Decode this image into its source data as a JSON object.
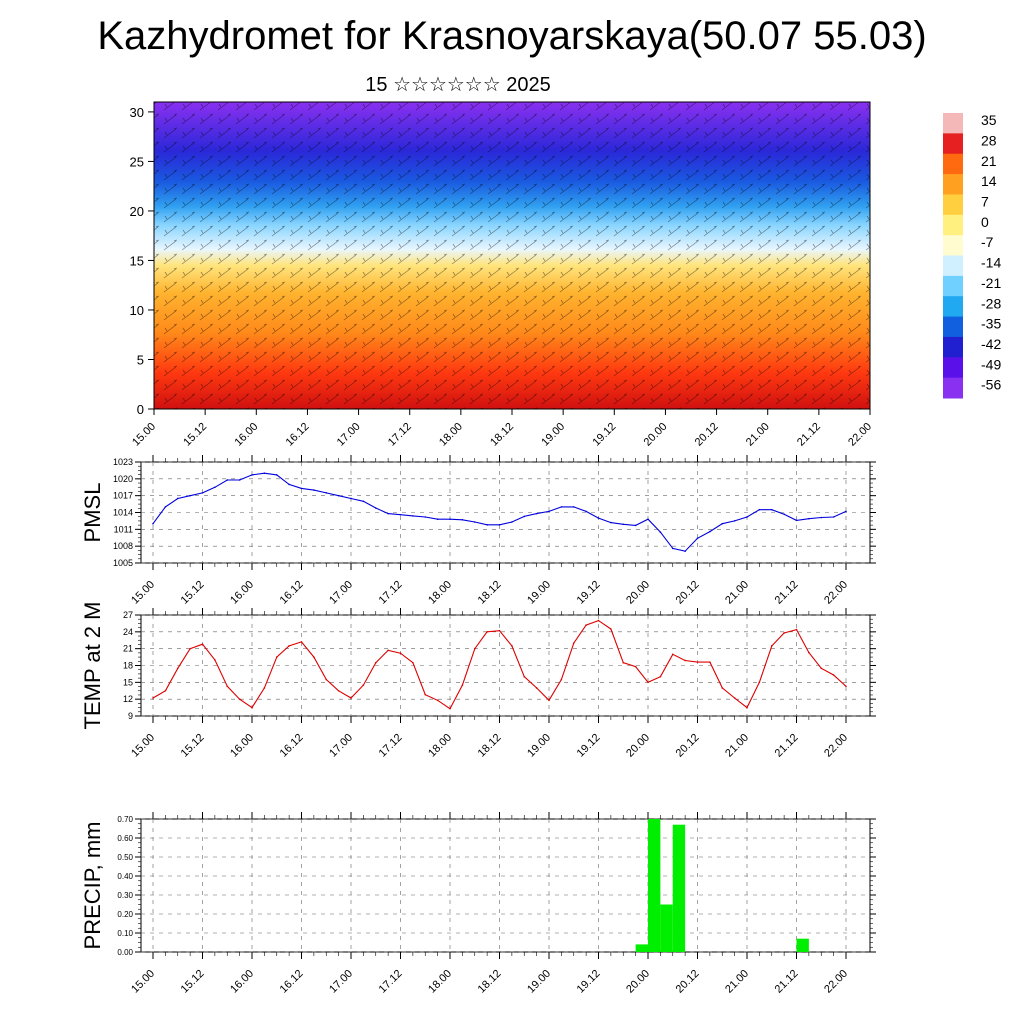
{
  "header": {
    "title": "Kazhydromet for Krasnoyarskaya(50.07 55.03)",
    "date": "15 ☆☆☆☆☆☆ 2025"
  },
  "colorbar": {
    "labels": [
      "35",
      "28",
      "21",
      "14",
      "7",
      "0",
      "-7",
      "-14",
      "-21",
      "-28",
      "-35",
      "-42",
      "-49",
      "-56"
    ],
    "colors": [
      "#f4b8b8",
      "#e62020",
      "#ff6a10",
      "#ffa020",
      "#ffcf40",
      "#fff080",
      "#fffcd0",
      "#d0f0ff",
      "#70d0ff",
      "#20a8f0",
      "#1060e0",
      "#2020d0",
      "#5a10e8",
      "#8a30f0"
    ]
  },
  "chart_data": [
    {
      "type": "heatmap",
      "name": "cross-section",
      "x_tick_labels": [
        "15.00",
        "15.12",
        "16.00",
        "16.12",
        "17.00",
        "17.12",
        "18.00",
        "18.12",
        "19.00",
        "19.12",
        "20.00",
        "20.12",
        "21.00",
        "21.12",
        "22.00"
      ],
      "y_tick_labels": [
        "0",
        "5",
        "10",
        "15",
        "20",
        "25",
        "30"
      ],
      "ylim": [
        0,
        31
      ],
      "value_range": [
        -56,
        35
      ]
    },
    {
      "type": "line",
      "ylabel": "PMSL",
      "y_tick_labels": [
        "1005",
        "1008",
        "1011",
        "1014",
        "1017",
        "1020",
        "1023"
      ],
      "ylim": [
        1005,
        1023
      ],
      "color": "#0000dd",
      "x_tick_labels": [
        "15.00",
        "15.12",
        "16.00",
        "16.12",
        "17.00",
        "17.12",
        "18.00",
        "18.12",
        "19.00",
        "19.12",
        "20.00",
        "20.12",
        "21.00",
        "21.12",
        "22.00"
      ],
      "x": [
        0,
        3,
        6,
        9,
        12,
        15,
        18,
        21,
        24,
        27,
        30,
        33,
        36,
        39,
        42,
        45,
        48,
        51,
        54,
        57,
        60,
        63,
        66,
        69,
        72,
        75,
        78,
        81,
        84,
        87,
        90,
        93,
        96,
        99,
        102,
        105,
        108,
        111,
        114,
        117,
        120,
        123,
        126,
        129,
        132,
        135,
        138,
        141,
        144,
        147,
        150,
        153,
        156,
        159,
        162,
        165,
        168
      ],
      "values": [
        1012,
        1015,
        1016.5,
        1017,
        1017.5,
        1018.5,
        1019.8,
        1019.8,
        1020.7,
        1021,
        1020.7,
        1019,
        1018.3,
        1018,
        1017.5,
        1017,
        1016.5,
        1016,
        1014.8,
        1013.8,
        1013.6,
        1013.4,
        1013.2,
        1012.8,
        1012.8,
        1012.7,
        1012.3,
        1011.8,
        1011.8,
        1012.3,
        1013.3,
        1013.8,
        1014.2,
        1015,
        1015,
        1014.2,
        1013,
        1012.2,
        1011.9,
        1011.7,
        1012.8,
        1010.5,
        1007.6,
        1007.1,
        1009.4,
        1010.6,
        1012,
        1012.5,
        1013.2,
        1014.5,
        1014.5,
        1013.7,
        1012.6,
        1012.9,
        1013.1,
        1013.2,
        1014.2
      ]
    },
    {
      "type": "line",
      "ylabel": "TEMP at 2 M",
      "y_tick_labels": [
        "9",
        "12",
        "15",
        "18",
        "21",
        "24",
        "27"
      ],
      "ylim": [
        9,
        27
      ],
      "color": "#dd0000",
      "x_tick_labels": [
        "15.00",
        "15.12",
        "16.00",
        "16.12",
        "17.00",
        "17.12",
        "18.00",
        "18.12",
        "19.00",
        "19.12",
        "20.00",
        "20.12",
        "21.00",
        "21.12",
        "22.00"
      ],
      "x": [
        0,
        3,
        6,
        9,
        12,
        15,
        18,
        21,
        24,
        27,
        30,
        33,
        36,
        39,
        42,
        45,
        48,
        51,
        54,
        57,
        60,
        63,
        66,
        69,
        72,
        75,
        78,
        81,
        84,
        87,
        90,
        93,
        96,
        99,
        102,
        105,
        108,
        111,
        114,
        117,
        120,
        123,
        126,
        129,
        132,
        135,
        138,
        141,
        144,
        147,
        150,
        153,
        156,
        159,
        162,
        165,
        168
      ],
      "values": [
        12.2,
        13.5,
        17.5,
        21,
        21.8,
        19,
        14.3,
        12,
        10.5,
        14,
        19.5,
        21.5,
        22.2,
        19.5,
        15.5,
        13.5,
        12.2,
        14.5,
        18.5,
        20.7,
        20.2,
        18.5,
        12.8,
        11.8,
        10.3,
        14.5,
        21,
        24,
        24.2,
        21.5,
        16,
        14,
        11.8,
        15.5,
        22,
        25.2,
        26,
        24.5,
        18.5,
        17.8,
        15,
        16,
        20,
        18.9,
        18.6,
        18.6,
        14,
        12.2,
        10.5,
        15,
        21.5,
        23.8,
        24.4,
        20.3,
        17.5,
        16.3,
        14.3
      ]
    },
    {
      "type": "bar",
      "ylabel": "PRECIP, mm",
      "y_tick_labels": [
        "0.00",
        "0.10",
        "0.20",
        "0.30",
        "0.40",
        "0.50",
        "0.60",
        "0.70"
      ],
      "ylim": [
        0,
        0.7
      ],
      "color": "#00ee00",
      "x_tick_labels": [
        "15.00",
        "15.12",
        "16.00",
        "16.12",
        "17.00",
        "17.12",
        "18.00",
        "18.12",
        "19.00",
        "19.12",
        "20.00",
        "20.12",
        "21.00",
        "21.12",
        "22.00"
      ],
      "bars": [
        {
          "x": 118.5,
          "value": 0.04
        },
        {
          "x": 121.5,
          "value": 0.7
        },
        {
          "x": 124.5,
          "value": 0.25
        },
        {
          "x": 127.5,
          "value": 0.67
        },
        {
          "x": 157.5,
          "value": 0.07
        }
      ]
    }
  ]
}
